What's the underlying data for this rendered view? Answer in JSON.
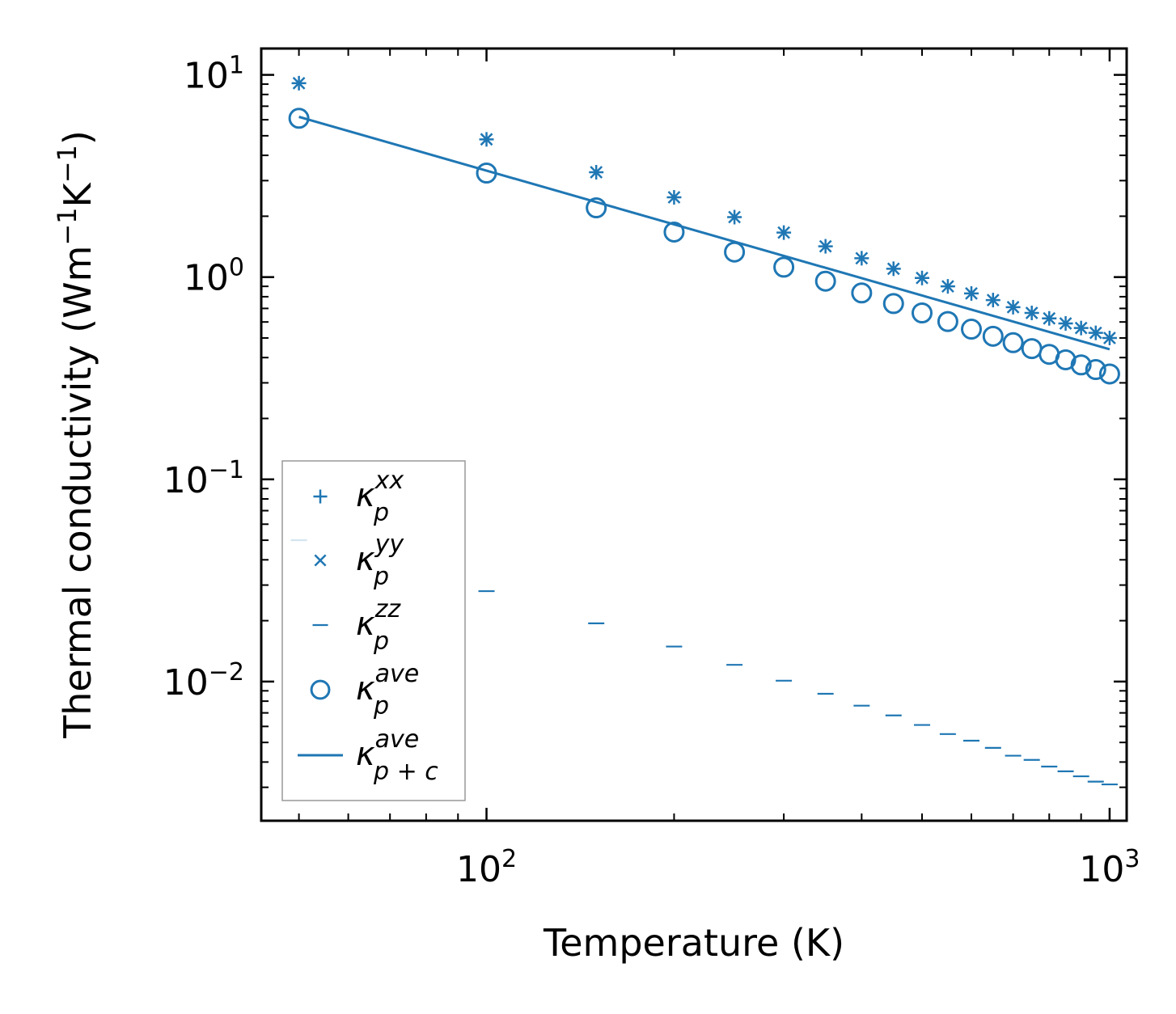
{
  "chart_data": {
    "type": "scatter",
    "title": "",
    "xlabel": "Temperature (K)",
    "ylabel": {
      "text": "Thermal conductivity (Wm",
      "sup1": "−1",
      "mid": "K",
      "sup2": "−1",
      "end": ")"
    },
    "xscale": "log",
    "yscale": "log",
    "xlim": [
      43.5,
      1065
    ],
    "ylim": [
      0.00205,
      13.5
    ],
    "xticks": [
      {
        "base": "10",
        "exp": "2",
        "value": 100
      },
      {
        "base": "10",
        "exp": "3",
        "value": 1000
      }
    ],
    "yticks": [
      {
        "base": "10",
        "exp": "1",
        "value": 10
      },
      {
        "base": "10",
        "exp": "0",
        "value": 1
      },
      {
        "base": "10",
        "exp": "−1",
        "value": 0.1
      },
      {
        "base": "10",
        "exp": "−2",
        "value": 0.01
      }
    ],
    "color": "#1f77b4",
    "x": [
      50,
      100,
      150,
      200,
      250,
      300,
      350,
      400,
      450,
      500,
      550,
      600,
      650,
      700,
      750,
      800,
      850,
      900,
      950,
      1000
    ],
    "series": [
      {
        "name": "kappa_p^xx",
        "marker": "plus",
        "values": [
          9.1,
          4.8,
          3.3,
          2.48,
          1.98,
          1.66,
          1.42,
          1.24,
          1.1,
          0.99,
          0.9,
          0.83,
          0.77,
          0.71,
          0.665,
          0.625,
          0.59,
          0.56,
          0.53,
          0.5
        ]
      },
      {
        "name": "kappa_p^yy",
        "marker": "x",
        "values": [
          9.1,
          4.8,
          3.3,
          2.48,
          1.98,
          1.66,
          1.42,
          1.24,
          1.1,
          0.99,
          0.9,
          0.83,
          0.77,
          0.71,
          0.665,
          0.625,
          0.59,
          0.56,
          0.53,
          0.5
        ]
      },
      {
        "name": "kappa_p^zz",
        "marker": "hline",
        "values": [
          0.05,
          0.028,
          0.0194,
          0.0149,
          0.0121,
          0.0101,
          0.0087,
          0.0076,
          0.0068,
          0.0061,
          0.0055,
          0.0051,
          0.0047,
          0.0043,
          0.0041,
          0.0038,
          0.0036,
          0.0034,
          0.0032,
          0.0031
        ]
      },
      {
        "name": "kappa_p^ave",
        "marker": "circle",
        "values": [
          6.1,
          3.27,
          2.2,
          1.67,
          1.33,
          1.12,
          0.955,
          0.835,
          0.74,
          0.665,
          0.603,
          0.553,
          0.51,
          0.474,
          0.443,
          0.415,
          0.39,
          0.368,
          0.349,
          0.332
        ]
      },
      {
        "name": "kappa_p+c^ave",
        "marker": "line",
        "x": [
          50,
          1000
        ],
        "values": [
          6.2,
          0.44
        ]
      }
    ],
    "legend": {
      "position": "lower-left",
      "entries": [
        {
          "symbol": "κ",
          "sub": "p",
          "sup": "xx"
        },
        {
          "symbol": "κ",
          "sub": "p",
          "sup": "yy"
        },
        {
          "symbol": "κ",
          "sub": "p",
          "sup": "zz"
        },
        {
          "symbol": "κ",
          "sub": "p",
          "sup": "ave"
        },
        {
          "symbol": "κ",
          "sub": "p + c",
          "sup": "ave"
        }
      ]
    }
  }
}
